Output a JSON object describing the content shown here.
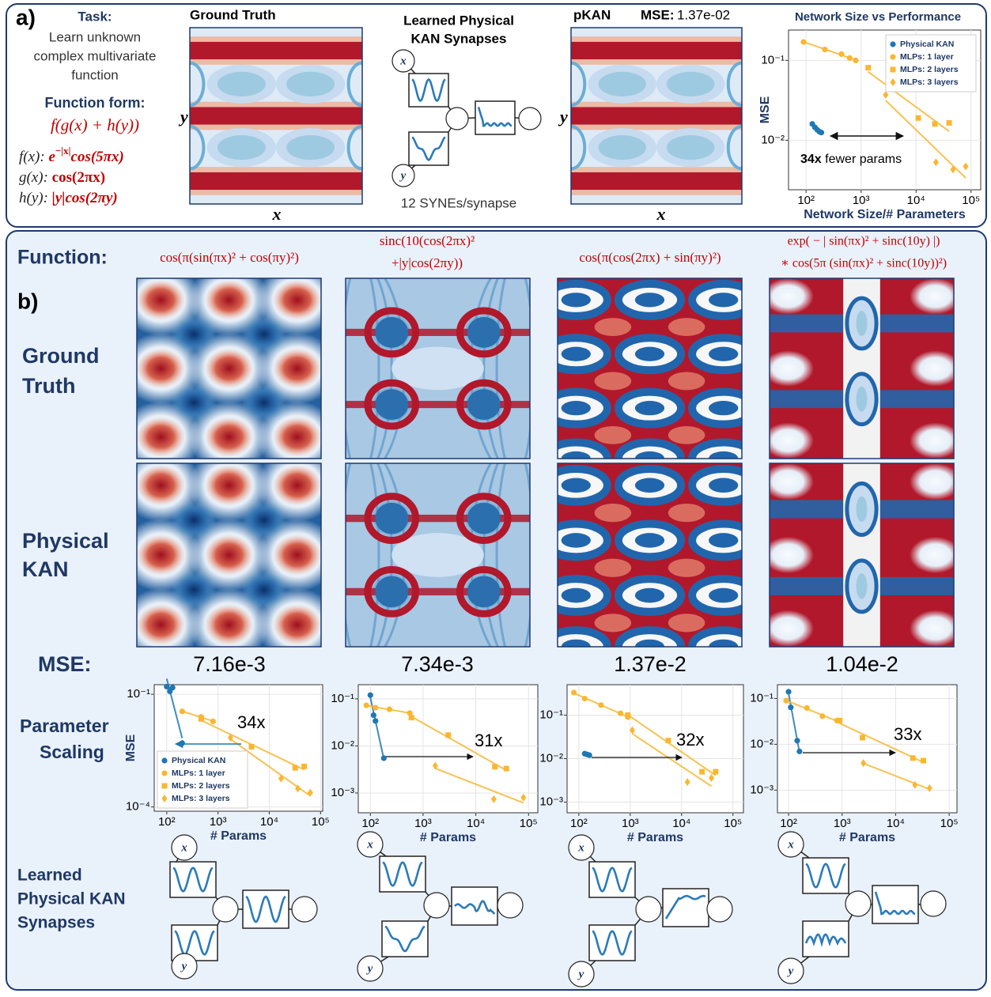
{
  "figure": {
    "panel_a": {
      "label": "a)",
      "task_title": "Task:",
      "task_lines": [
        "Learn unknown",
        "complex multivariate",
        "function"
      ],
      "form_title": "Function form:",
      "form": "f(g(x) + h(y))",
      "f_def": {
        "lhs": "f(x):",
        "base": "e",
        "exponent": "−|x|",
        "rest": "cos(5πx)"
      },
      "g_def": {
        "lhs": "g(x):",
        "rhs": "cos(2πx)"
      },
      "h_def": {
        "lhs": "h(y):",
        "rhs": "|y|cos(2πy)"
      },
      "ground_truth_title": "Ground Truth",
      "pkan_title": "pKAN",
      "mse_label": "MSE:",
      "mse_value": "1.37e-02",
      "x_label": "x",
      "y_label": "y",
      "synapse_title": [
        "Learned Physical",
        "KAN Synapses"
      ],
      "synapse_note": "12 SYNEs/synapse"
    },
    "panel_b": {
      "label": "b)",
      "function_label": "Function:",
      "functions": [
        [
          "cos(π(sin(πx)² + cos(πy)²)"
        ],
        [
          "sinc(10(cos(2πx)²",
          "+|y|cos(2πy))"
        ],
        [
          "cos(π(cos(2πx) + sin(πy)²)"
        ],
        [
          "exp( − | sin(πx)² + sinc(10y) |)",
          "∗ cos(5π (sin(πx)² + sinc(10y))²)"
        ]
      ],
      "row_ground_truth": [
        "Ground",
        "Truth"
      ],
      "row_physical_kan": [
        "Physical",
        "KAN"
      ],
      "mse_label": "MSE:",
      "mse_values": [
        "7.16e-3",
        "7.34e-3",
        "1.37e-2",
        "1.04e-2"
      ],
      "row_scaling": [
        "Parameter",
        "Scaling"
      ],
      "row_synapses": [
        "Learned",
        "Physical KAN",
        "Synapses"
      ]
    }
  },
  "chart_data": [
    {
      "type": "scatter",
      "title": "Network Size vs Performance",
      "xlabel": "Network Size/# Parameters",
      "ylabel": "MSE",
      "xscale": "log",
      "yscale": "log",
      "grid": true,
      "legend": "upper right",
      "annotation": "34x",
      "annotation_text": "fewer params",
      "xlim": [
        48,
        150000
      ],
      "ylim": [
        0.0024,
        0.24
      ],
      "xticks": [
        {
          "value": 100,
          "label": "10²"
        },
        {
          "value": 1000,
          "label": "10³"
        },
        {
          "value": 10000,
          "label": "10⁴"
        },
        {
          "value": 100000,
          "label": "10⁵"
        }
      ],
      "yticks": [
        {
          "value": 0.1,
          "label": "10⁻¹"
        },
        {
          "value": 0.01,
          "label": "10⁻²"
        }
      ],
      "series": [
        {
          "name": "Physical KAN",
          "color": "#1f77b4",
          "marker": "circle",
          "x": [
            130,
            145,
            160,
            175,
            190
          ],
          "values": [
            0.016,
            0.0145,
            0.0135,
            0.0128,
            0.0125
          ]
        },
        {
          "name": "MLPs: 1 layer",
          "color": "#f9b731",
          "marker": "circle",
          "x": [
            90,
            220,
            440,
            620,
            800
          ],
          "values": [
            0.17,
            0.137,
            0.12,
            0.107,
            0.1
          ]
        },
        {
          "name": "MLPs: 2 layers",
          "color": "#f9b731",
          "marker": "square",
          "x": [
            1350,
            11000,
            22000,
            40000
          ],
          "values": [
            0.081,
            0.019,
            0.016,
            0.0165
          ]
        },
        {
          "name": "MLPs: 3 layers",
          "color": "#f9b731",
          "marker": "diamond",
          "x": [
            2800,
            23000,
            47000,
            80000
          ],
          "values": [
            0.037,
            0.0053,
            0.0043,
            0.0047
          ]
        }
      ]
    },
    {
      "type": "scatter",
      "xlabel": "# Params",
      "ylabel": "MSE",
      "xscale": "log",
      "yscale": "log",
      "grid": true,
      "legend": "lower left",
      "annotation": "34x",
      "xlim": [
        57,
        110000
      ],
      "ylim": [
        7.7e-05,
        0.18
      ],
      "xticks": [
        {
          "value": 100,
          "label": "10²"
        },
        {
          "value": 1000,
          "label": "10³"
        },
        {
          "value": 10000,
          "label": "10⁴"
        },
        {
          "value": 100000,
          "label": "10⁵"
        }
      ],
      "yticks": [
        {
          "value": 0.1,
          "label": "10⁻¹"
        },
        {
          "value": 0.0001,
          "label": "10⁻⁴"
        }
      ],
      "series": [
        {
          "name": "Physical KAN",
          "color": "#1f77b4",
          "marker": "circle",
          "x": [
            100,
            115,
            130,
            200
          ],
          "values": [
            0.16,
            0.12,
            0.15,
            0.005
          ]
        },
        {
          "name": "MLPs: 1 layer",
          "color": "#f9b731",
          "marker": "circle",
          "x": [
            200,
            470,
            800
          ],
          "values": [
            0.035,
            0.025,
            0.019
          ]
        },
        {
          "name": "MLPs: 2 layers",
          "color": "#f9b731",
          "marker": "square",
          "x": [
            470,
            4500,
            32000,
            48000
          ],
          "values": [
            0.022,
            0.004,
            0.0011,
            0.0012
          ]
        },
        {
          "name": "MLPs: 3 layers",
          "color": "#f9b731",
          "marker": "diamond",
          "x": [
            1750,
            17000,
            36000,
            63000
          ],
          "values": [
            0.007,
            0.00057,
            0.00031,
            0.00024
          ]
        }
      ]
    },
    {
      "type": "scatter",
      "xlabel": "# Params",
      "xscale": "log",
      "yscale": "log",
      "grid": true,
      "annotation": "31x",
      "xlim": [
        59,
        150000
      ],
      "ylim": [
        0.00038,
        0.2
      ],
      "xticks": [
        {
          "value": 100,
          "label": "10²"
        },
        {
          "value": 1000,
          "label": "10³"
        },
        {
          "value": 10000,
          "label": "10⁴"
        },
        {
          "value": 100000,
          "label": "10⁵"
        }
      ],
      "yticks": [
        {
          "value": 0.1,
          "label": "10⁻¹"
        },
        {
          "value": 0.01,
          "label": "10⁻²"
        },
        {
          "value": 0.001,
          "label": "10⁻³"
        }
      ],
      "series": [
        {
          "color": "#1f77b4",
          "marker": "circle",
          "x": [
            100,
            115,
            125,
            180
          ],
          "values": [
            0.12,
            0.045,
            0.034,
            0.0055
          ]
        },
        {
          "color": "#f9b731",
          "marker": "circle",
          "x": [
            84,
            125,
            230,
            560
          ],
          "values": [
            0.073,
            0.065,
            0.06,
            0.05
          ]
        },
        {
          "color": "#f9b731",
          "marker": "square",
          "x": [
            600,
            3000,
            23000,
            38000
          ],
          "values": [
            0.04,
            0.017,
            0.0036,
            0.0033
          ]
        },
        {
          "color": "#f9b731",
          "marker": "diamond",
          "x": [
            1700,
            22000,
            80000
          ],
          "values": [
            0.0038,
            0.00074,
            0.0008
          ]
        }
      ]
    },
    {
      "type": "scatter",
      "xlabel": "# Params",
      "xscale": "log",
      "yscale": "log",
      "grid": true,
      "annotation": "32x",
      "xlim": [
        59,
        160000
      ],
      "ylim": [
        0.00057,
        0.5
      ],
      "xticks": [
        {
          "value": 100,
          "label": "10²"
        },
        {
          "value": 1000,
          "label": "10³"
        },
        {
          "value": 10000,
          "label": "10⁴"
        },
        {
          "value": 100000,
          "label": "10⁵"
        }
      ],
      "yticks": [
        {
          "value": 0.1,
          "label": "10⁻¹"
        },
        {
          "value": 0.01,
          "label": "10⁻²"
        },
        {
          "value": 0.001,
          "label": "10⁻³"
        }
      ],
      "series": [
        {
          "color": "#1f77b4",
          "marker": "circle",
          "x": [
            130,
            145,
            160
          ],
          "values": [
            0.013,
            0.0125,
            0.012
          ]
        },
        {
          "color": "#f9b731",
          "marker": "circle",
          "x": [
            80,
            130,
            270,
            650,
            900
          ],
          "values": [
            0.33,
            0.24,
            0.17,
            0.11,
            0.09
          ]
        },
        {
          "color": "#f9b731",
          "marker": "square",
          "x": [
            900,
            5500,
            25000,
            46000
          ],
          "values": [
            0.1,
            0.026,
            0.005,
            0.005
          ]
        },
        {
          "color": "#f9b731",
          "marker": "diamond",
          "x": [
            1100,
            13000,
            38000
          ],
          "values": [
            0.045,
            0.0029,
            0.0036
          ]
        }
      ]
    },
    {
      "type": "scatter",
      "xlabel": "# Params",
      "xscale": "log",
      "yscale": "log",
      "grid": true,
      "annotation": "33x",
      "xlim": [
        62,
        140000
      ],
      "ylim": [
        0.00032,
        0.2
      ],
      "xticks": [
        {
          "value": 100,
          "label": "10²"
        },
        {
          "value": 1000,
          "label": "10³"
        },
        {
          "value": 10000,
          "label": "10⁴"
        },
        {
          "value": 100000,
          "label": "10⁵"
        }
      ],
      "yticks": [
        {
          "value": 0.1,
          "label": "10⁻¹"
        },
        {
          "value": 0.01,
          "label": "10⁻²"
        },
        {
          "value": 0.001,
          "label": "10⁻³"
        }
      ],
      "series": [
        {
          "color": "#1f77b4",
          "marker": "circle",
          "x": [
            100,
            110,
            145,
            160
          ],
          "values": [
            0.14,
            0.064,
            0.012,
            0.007
          ]
        },
        {
          "color": "#f9b731",
          "marker": "circle",
          "x": [
            90,
            220,
            430,
            800
          ],
          "values": [
            0.09,
            0.062,
            0.041,
            0.033
          ]
        },
        {
          "color": "#f9b731",
          "marker": "square",
          "x": [
            900,
            2400,
            21000,
            33000
          ],
          "values": [
            0.033,
            0.014,
            0.005,
            0.0044
          ]
        },
        {
          "color": "#f9b731",
          "marker": "diamond",
          "x": [
            2500,
            23000,
            43000
          ],
          "values": [
            0.0039,
            0.0013,
            0.0011
          ]
        }
      ]
    }
  ]
}
